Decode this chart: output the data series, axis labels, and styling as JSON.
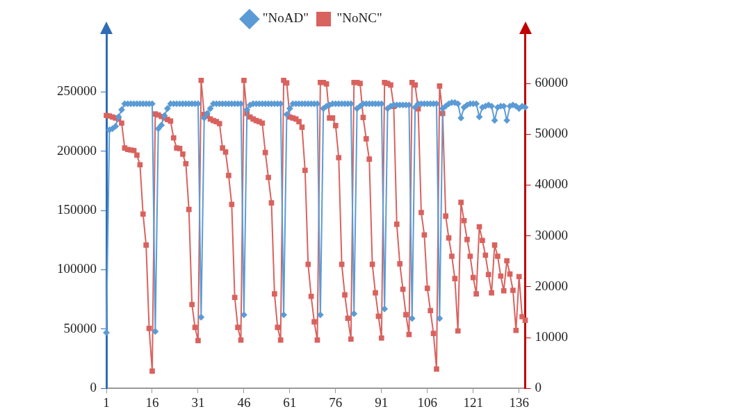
{
  "chart_data": {
    "type": "line",
    "categories": [
      "1",
      null,
      null,
      null,
      null,
      null,
      null,
      null,
      null,
      null,
      null,
      null,
      null,
      null,
      null,
      "16",
      null,
      null,
      null,
      null,
      null,
      null,
      null,
      null,
      null,
      null,
      null,
      null,
      null,
      null,
      "31",
      null,
      null,
      null,
      null,
      null,
      null,
      null,
      null,
      null,
      null,
      null,
      null,
      null,
      null,
      "46",
      null,
      null,
      null,
      null,
      null,
      null,
      null,
      null,
      null,
      null,
      null,
      null,
      null,
      null,
      "61",
      null,
      null,
      null,
      null,
      null,
      null,
      null,
      null,
      null,
      null,
      null,
      null,
      null,
      null,
      "76",
      null,
      null,
      null,
      null,
      null,
      null,
      null,
      null,
      null,
      null,
      null,
      null,
      null,
      null,
      "91",
      null,
      null,
      null,
      null,
      null,
      null,
      null,
      null,
      null,
      null,
      null,
      null,
      null,
      null,
      "106",
      null,
      null,
      null,
      null,
      null,
      null,
      null,
      null,
      null,
      null,
      null,
      null,
      null,
      null,
      "121",
      null,
      null,
      null,
      null,
      null,
      null,
      null,
      null,
      null,
      null,
      null,
      null,
      null,
      null,
      "136",
      null,
      null
    ],
    "series": [
      {
        "name": "\"NoAD\"",
        "color": "#5b9bd5",
        "marker": "diamond",
        "values": [
          47000,
          218000,
          219000,
          221000,
          229000,
          235000,
          240000,
          240000,
          240000,
          240000,
          240000,
          240000,
          240000,
          240000,
          240000,
          240000,
          48000,
          219000,
          222000,
          230000,
          236000,
          240000,
          240000,
          240000,
          240000,
          240000,
          240000,
          240000,
          240000,
          240000,
          240000,
          60000,
          228000,
          232000,
          236000,
          240000,
          240000,
          240000,
          240000,
          240000,
          240000,
          240000,
          240000,
          240000,
          240000,
          62000,
          235000,
          239000,
          240000,
          240000,
          240000,
          240000,
          240000,
          240000,
          240000,
          240000,
          240000,
          240000,
          62000,
          231000,
          236000,
          240000,
          240000,
          240000,
          240000,
          240000,
          240000,
          240000,
          240000,
          240000,
          62000,
          236000,
          238000,
          239000,
          240000,
          240000,
          240000,
          240000,
          240000,
          240000,
          240000,
          63000,
          236000,
          238000,
          240000,
          240000,
          240000,
          240000,
          240000,
          240000,
          240000,
          67000,
          236000,
          238000,
          239000,
          239000,
          239000,
          239000,
          239000,
          239000,
          59000,
          237000,
          240000,
          240000,
          240000,
          240000,
          240000,
          240000,
          240000,
          59000,
          236000,
          238000,
          240000,
          241000,
          241000,
          240000,
          228000,
          237000,
          239000,
          240000,
          240000,
          240000,
          229000,
          237000,
          238000,
          239000,
          238000,
          226000,
          237000,
          238000,
          238000,
          226000,
          238000,
          239000,
          238000,
          236000,
          238000,
          237000
        ]
      },
      {
        "name": "\"NoNC\"",
        "color": "#d9625e",
        "marker": "square",
        "axis": "y2",
        "values": [
          53700,
          53600,
          53400,
          53200,
          53000,
          52200,
          47300,
          47000,
          46900,
          46800,
          45900,
          44000,
          34300,
          28200,
          11800,
          3400,
          54000,
          53800,
          53500,
          53200,
          52900,
          52600,
          49300,
          47300,
          47200,
          46100,
          44200,
          35200,
          16500,
          12000,
          9400,
          60600,
          53900,
          53600,
          53000,
          52700,
          52500,
          52100,
          47300,
          46500,
          41900,
          36200,
          17900,
          12000,
          9500,
          60600,
          54100,
          53400,
          53000,
          52700,
          52500,
          52200,
          46400,
          41500,
          36500,
          18600,
          12000,
          9500,
          60600,
          60100,
          53400,
          53200,
          53000,
          52500,
          51400,
          42900,
          24400,
          18100,
          13100,
          9500,
          60200,
          60200,
          59900,
          53200,
          53200,
          51700,
          45400,
          24400,
          18400,
          13800,
          9700,
          60200,
          60200,
          60000,
          53300,
          49100,
          45100,
          24400,
          18800,
          14200,
          9900,
          60200,
          60000,
          59700,
          55500,
          32300,
          24500,
          19500,
          14500,
          10600,
          60200,
          59700,
          55000,
          34600,
          30200,
          19700,
          15300,
          10800,
          3800,
          59500,
          54100,
          33900,
          29600,
          26000,
          21600,
          11300,
          36600,
          33000,
          29300,
          26000,
          21800,
          18600,
          31800,
          29100,
          26200,
          22400,
          18800,
          28200,
          26000,
          22100,
          19200,
          25100,
          22500,
          19300,
          11400,
          22000,
          14100,
          13400
        ]
      }
    ],
    "ylim": [
      0,
      300000
    ],
    "yticks": [
      0,
      50000,
      100000,
      150000,
      200000,
      250000
    ],
    "y2lim": [
      0,
      70000
    ],
    "y2ticks": [
      0,
      10000,
      20000,
      30000,
      40000,
      50000,
      60000
    ],
    "legend": "top"
  }
}
